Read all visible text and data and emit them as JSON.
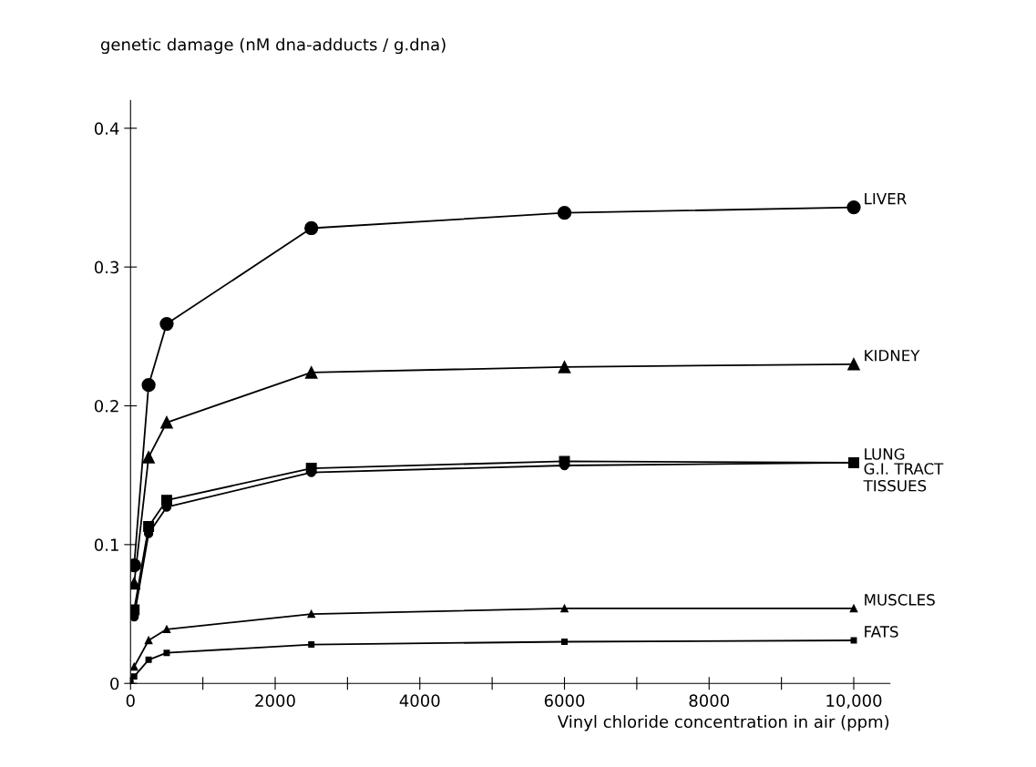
{
  "chart_data": {
    "type": "line",
    "ylabel": "genetic damage (nM dna-adducts / g.dna)",
    "xlabel": "Vinyl chloride concentration in air (ppm)",
    "x": [
      0,
      50,
      250,
      500,
      2500,
      6000,
      10000
    ],
    "series": [
      {
        "name": "LIVER",
        "color": "#000000",
        "marker": "circle",
        "values": [
          null,
          0.085,
          0.215,
          0.259,
          0.328,
          0.339,
          0.343
        ]
      },
      {
        "name": "KIDNEY",
        "color": "#000000",
        "marker": "triangle",
        "values": [
          null,
          0.072,
          0.163,
          0.188,
          0.224,
          0.228,
          0.23
        ]
      },
      {
        "name": "LUNG",
        "color": "#000000",
        "marker": "square",
        "values": [
          null,
          0.053,
          0.113,
          0.132,
          0.155,
          0.16,
          0.159
        ]
      },
      {
        "name": "G.I. TRACT\nTISSUES",
        "color": "#000000",
        "marker": "circle",
        "values": [
          null,
          0.048,
          0.108,
          0.127,
          0.152,
          0.157,
          0.159
        ]
      },
      {
        "name": "MUSCLES",
        "color": "#000000",
        "marker": "triangle",
        "values": [
          null,
          0.012,
          0.031,
          0.039,
          0.05,
          0.054,
          0.054
        ]
      },
      {
        "name": "FATS",
        "color": "#000000",
        "marker": "square",
        "values": [
          0,
          0.005,
          0.017,
          0.022,
          0.028,
          0.03,
          0.031
        ]
      }
    ],
    "xlim": [
      0,
      10500
    ],
    "ylim": [
      0,
      0.42
    ],
    "xticks": [
      0,
      {
        "value": 1000,
        "label": null
      },
      2000,
      {
        "value": 3000,
        "label": null
      },
      4000,
      {
        "value": 5000,
        "label": null
      },
      6000,
      {
        "value": 7000,
        "label": null
      },
      8000,
      {
        "value": 9000,
        "label": null
      },
      {
        "value": 10000,
        "label": "10,000"
      }
    ],
    "yticks": [
      0,
      0.1,
      0.2,
      0.3,
      0.4
    ],
    "grid": false,
    "legend": false,
    "line_style": "solid"
  }
}
